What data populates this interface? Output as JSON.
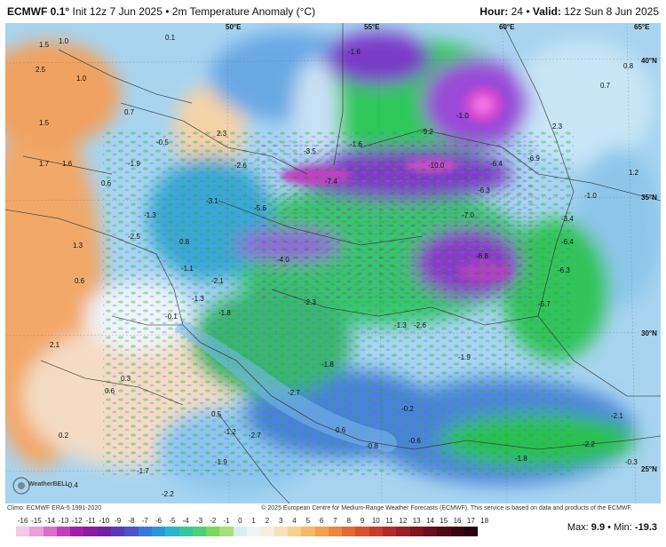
{
  "header": {
    "model": "ECMWF 0.1°",
    "init": "Init 12z 7 Jun 2025",
    "separator": "•",
    "field": "2m Temperature Anomaly (°C)",
    "hour_label": "Hour:",
    "hour": "24",
    "valid_label": "Valid:",
    "valid": "12z Sun 8 Jun 2025"
  },
  "grid_labels": {
    "lon_50": "50°E",
    "lon_60": "60°E",
    "lon_65": "65°E",
    "lon_55": "55°E",
    "lat_40": "40°N",
    "lat_35": "35°N",
    "lat_30": "30°N",
    "lat_25": "25°N"
  },
  "anomaly_values": [
    "1.5",
    "1.0",
    "0.1",
    "2.5",
    "1.0",
    "0.7",
    "1.5",
    "2.3",
    "-0.5",
    "1.6",
    "1.7",
    "-1.9",
    "0.6",
    "1.3",
    "-2.5",
    "-1.1",
    "-1.3",
    "0.6",
    "-2.1",
    "0.8",
    "-1.8",
    "-0.1",
    "2.1",
    "0.6",
    "0.3",
    "0.2",
    "0.5",
    "-1.2",
    "-2.7",
    "-1.9",
    "-1.7",
    "-2.2",
    "-0.4",
    "-1.6",
    "-7.4",
    "-5.6",
    "-3.5",
    "-2.6",
    "-4.0",
    "-3.1",
    "-2.3",
    "-2.6",
    "-1.9",
    "-1.3",
    "-0.8",
    "0.6",
    "-0.2",
    "-2.7",
    "-1.8",
    "-6.4",
    "-6.3",
    "-7.0",
    "-6.9",
    "-3.4",
    "-6.4",
    "-6.3",
    "-5.7",
    "-1.0",
    "1.2",
    "-1.0",
    "2.3",
    "0.7",
    "0.8",
    "-2.1",
    "-0.3",
    "-1.3",
    "-1.6",
    "-10.0",
    "-9.2",
    "-8.8",
    "-0.6",
    "-1.8",
    "-2.2"
  ],
  "colorbar": {
    "ticks": [
      "-16",
      "-15",
      "-14",
      "-13",
      "-12",
      "-11",
      "-10",
      "-9",
      "-8",
      "-7",
      "-6",
      "-5",
      "-4",
      "-3",
      "-2",
      "-1",
      "0",
      "1",
      "2",
      "3",
      "4",
      "5",
      "6",
      "7",
      "8",
      "9",
      "10",
      "11",
      "12",
      "13",
      "14",
      "15",
      "16",
      "17",
      "18"
    ],
    "colors": [
      "#f5c8e6",
      "#e9a0d6",
      "#d870c8",
      "#c040b8",
      "#a020a8",
      "#8a1a9e",
      "#6e22a0",
      "#5a3ab4",
      "#4a55c6",
      "#3a78d4",
      "#2a98d8",
      "#2cb6c8",
      "#36c6a2",
      "#4ad07a",
      "#7ad85a",
      "#a6e07c",
      "#d6eef2",
      "#eef6fa",
      "#f6eedc",
      "#f8e2b8",
      "#f8d08e",
      "#f4b86a",
      "#f0a050",
      "#ea8640",
      "#e06a36",
      "#d6522e",
      "#c63e2a",
      "#b02c26",
      "#982024",
      "#7e1620",
      "#64101c",
      "#4e0a16",
      "#3a0610",
      "#28040a"
    ]
  },
  "credits": {
    "climo": "Climo: ECMWF ERA-5 1991-2020",
    "copyright": "© 2025 European Centre for Medium-Range Weather Forecasts (ECMWF). This service is based on data and products of the ECMWF."
  },
  "stats": {
    "max_label": "Max:",
    "max": "9.9",
    "sep": "•",
    "min_label": "Min:",
    "min": "-19.3"
  },
  "logo_text": "WeatherBELL"
}
